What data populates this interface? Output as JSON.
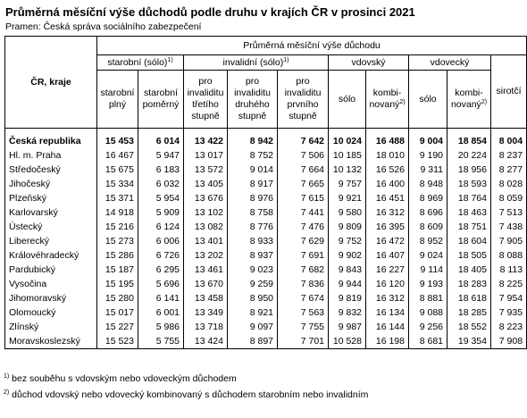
{
  "title": "Průměrná měsíční výše důchodů podle druhu v krajích ČR v prosinci 2021",
  "source": "Pramen: Česká správa sociálního zabezpečení",
  "table": {
    "stub_header": "ČR, kraje",
    "top_header": "Průměrná měsíční výše důchodu",
    "groups": [
      {
        "label": "starobní (sólo)",
        "note": "1)",
        "span": 2
      },
      {
        "label": "invalidní (sólo)",
        "note": "1)",
        "span": 3
      },
      {
        "label": "vdovský",
        "span": 2
      },
      {
        "label": "vdovecký",
        "span": 2
      }
    ],
    "last_column": "sirotčí",
    "columns": [
      {
        "label": "starobní plný"
      },
      {
        "label": "starobní poměrný"
      },
      {
        "label": "pro invaliditu třetího stupně"
      },
      {
        "label": "pro invaliditu druhého stupně"
      },
      {
        "label": "pro invaliditu prvního stupně"
      },
      {
        "label": "sólo"
      },
      {
        "label": "kombi-novaný",
        "note": "2)"
      },
      {
        "label": "sólo"
      },
      {
        "label": "kombi-novaný",
        "note": "2)"
      }
    ],
    "rows": [
      {
        "label": "Česká republika",
        "values": [
          "15 453",
          "6 014",
          "13 422",
          "8 942",
          "7 642",
          "10 024",
          "16 488",
          "9 004",
          "18 854",
          "8 004"
        ]
      },
      {
        "label": "Hl. m. Praha",
        "values": [
          "16 467",
          "5 947",
          "13 017",
          "8 752",
          "7 506",
          "10 185",
          "18 010",
          "9 190",
          "20 224",
          "8 237"
        ]
      },
      {
        "label": "Středočeský",
        "values": [
          "15 675",
          "6 183",
          "13 572",
          "9 014",
          "7 664",
          "10 132",
          "16 526",
          "9 311",
          "18 956",
          "8 277"
        ]
      },
      {
        "label": "Jihočeský",
        "values": [
          "15 334",
          "6 032",
          "13 405",
          "8 917",
          "7 665",
          "9 757",
          "16 400",
          "8 948",
          "18 593",
          "8 028"
        ]
      },
      {
        "label": "Plzeňský",
        "values": [
          "15 371",
          "5 954",
          "13 676",
          "8 976",
          "7 615",
          "9 921",
          "16 451",
          "8 969",
          "18 764",
          "8 059"
        ]
      },
      {
        "label": "Karlovarský",
        "values": [
          "14 918",
          "5 909",
          "13 102",
          "8 758",
          "7 441",
          "9 580",
          "16 312",
          "8 696",
          "18 463",
          "7 513"
        ]
      },
      {
        "label": "Ústecký",
        "values": [
          "15 216",
          "6 124",
          "13 082",
          "8 776",
          "7 476",
          "9 809",
          "16 395",
          "8 609",
          "18 751",
          "7 438"
        ]
      },
      {
        "label": "Liberecký",
        "values": [
          "15 273",
          "6 006",
          "13 401",
          "8 933",
          "7 629",
          "9 752",
          "16 472",
          "8 952",
          "18 604",
          "7 905"
        ]
      },
      {
        "label": "Královéhradecký",
        "values": [
          "15 286",
          "6 726",
          "13 202",
          "8 937",
          "7 691",
          "9 902",
          "16 407",
          "9 024",
          "18 505",
          "8 088"
        ]
      },
      {
        "label": "Pardubický",
        "values": [
          "15 187",
          "6 295",
          "13 461",
          "9 023",
          "7 682",
          "9 843",
          "16 227",
          "9 114",
          "18 405",
          "8 113"
        ]
      },
      {
        "label": "Vysočina",
        "values": [
          "15 195",
          "5 696",
          "13 670",
          "9 259",
          "7 836",
          "9 944",
          "16 120",
          "9 193",
          "18 283",
          "8 225"
        ]
      },
      {
        "label": "Jihomoravský",
        "values": [
          "15 280",
          "6 141",
          "13 458",
          "8 950",
          "7 674",
          "9 819",
          "16 312",
          "8 881",
          "18 618",
          "7 954"
        ]
      },
      {
        "label": "Olomoucký",
        "values": [
          "15 017",
          "6 001",
          "13 349",
          "8 921",
          "7 563",
          "9 832",
          "16 134",
          "9 088",
          "18 285",
          "7 935"
        ]
      },
      {
        "label": "Zlínský",
        "values": [
          "15 227",
          "5 986",
          "13 718",
          "9 097",
          "7 755",
          "9 987",
          "16 144",
          "9 256",
          "18 552",
          "8 223"
        ]
      },
      {
        "label": "Moravskoslezský",
        "values": [
          "15 523",
          "5 755",
          "13 424",
          "8 897",
          "7 701",
          "10 528",
          "16 198",
          "8 681",
          "19 354",
          "7 908"
        ]
      }
    ]
  },
  "footnotes": [
    {
      "mark": "1)",
      "text": "bez souběhu s vdovským nebo vdoveckým důchodem"
    },
    {
      "mark": "2)",
      "text": "důchod vdovský nebo vdovecký  kombinovaný s důchodem starobním nebo invalidním"
    }
  ]
}
